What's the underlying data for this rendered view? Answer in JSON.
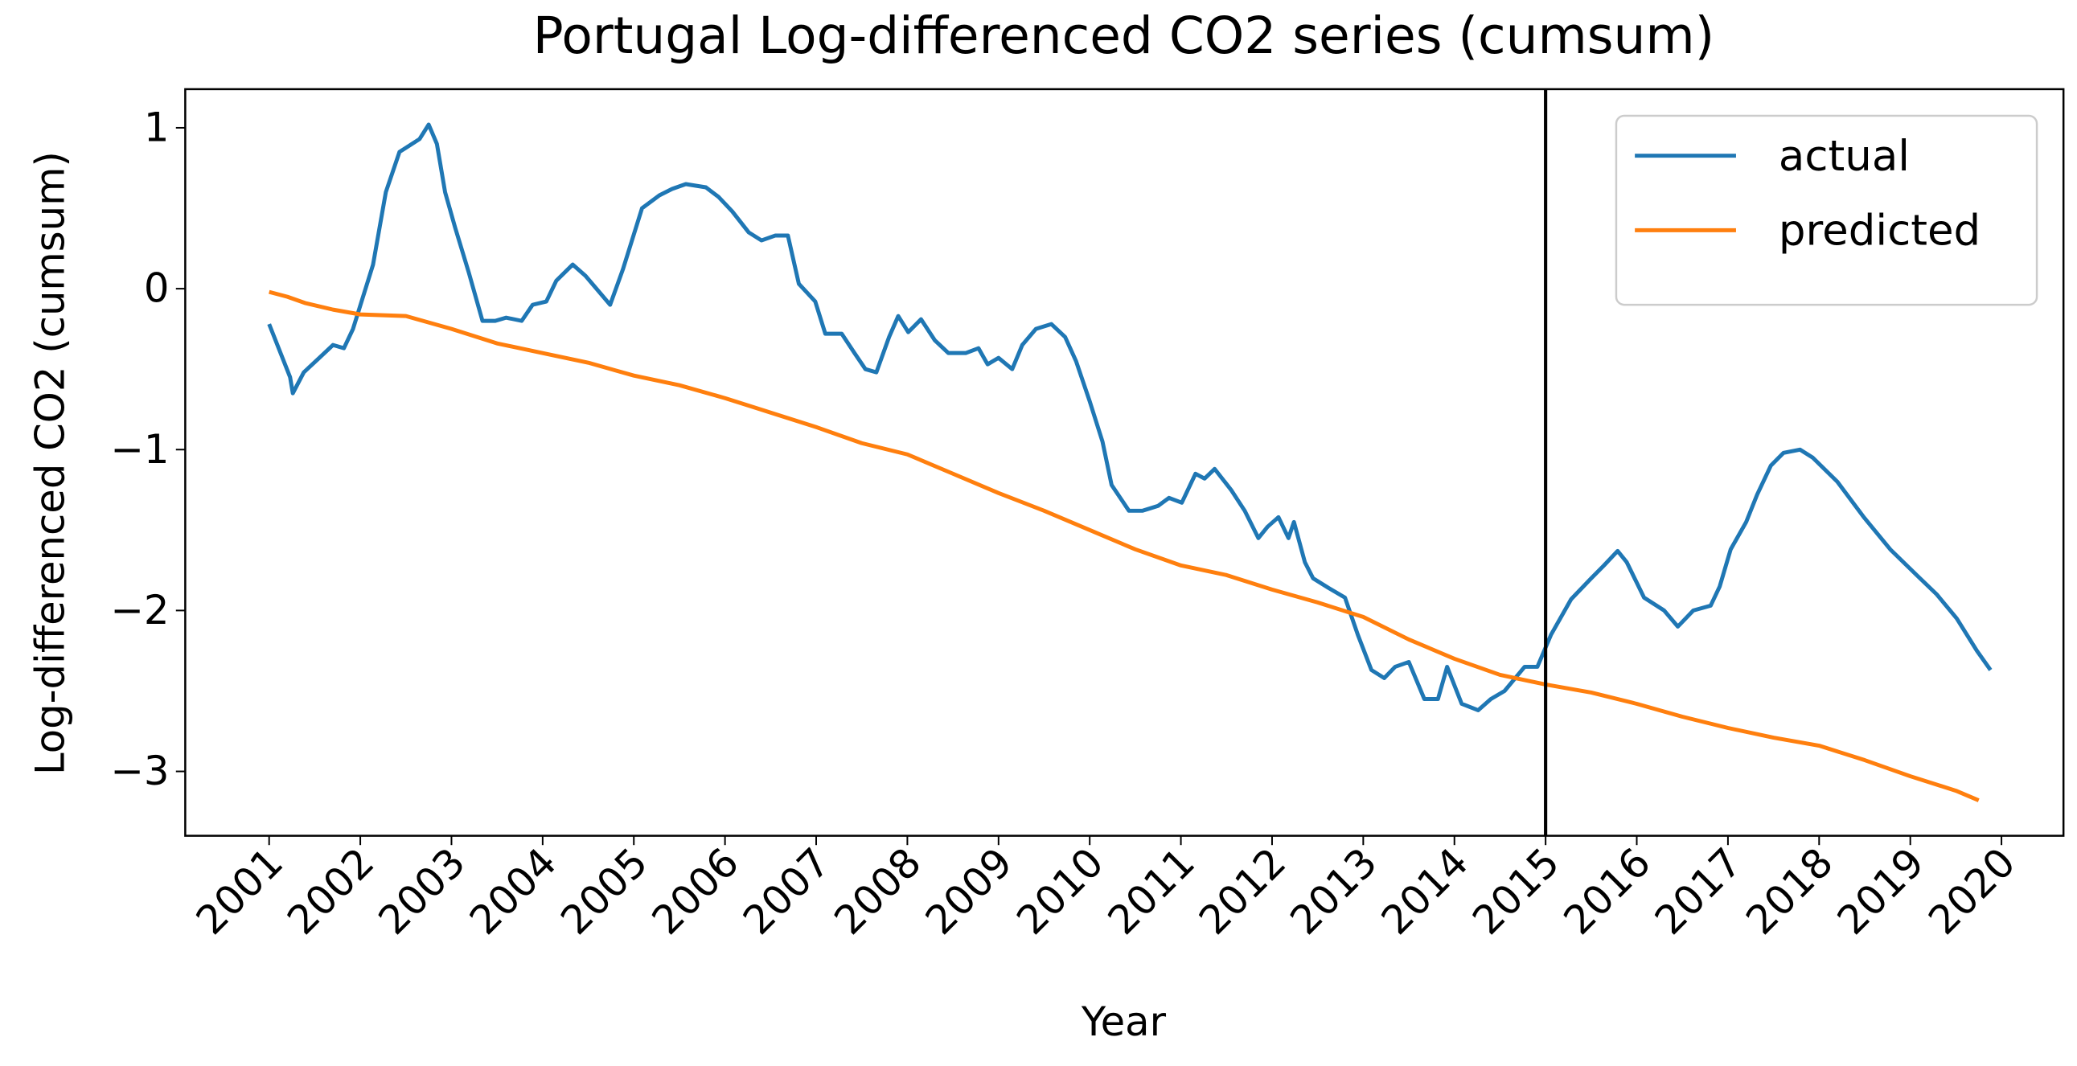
{
  "chart_data": {
    "type": "line",
    "title": "Portugal Log-differenced CO2 series (cumsum)",
    "x_label": "Year",
    "y_label": "Log-differenced CO2 (cumsum)",
    "xlim": [
      2000.08,
      2020.68
    ],
    "ylim": [
      -3.4,
      1.24
    ],
    "xticks": [
      2001,
      2002,
      2003,
      2004,
      2005,
      2006,
      2007,
      2008,
      2009,
      2010,
      2011,
      2012,
      2013,
      2014,
      2015,
      2016,
      2017,
      2018,
      2019,
      2020
    ],
    "yticks": [
      {
        "value": -3,
        "label": "−3"
      },
      {
        "value": -2,
        "label": "−2"
      },
      {
        "value": -1,
        "label": "−1"
      },
      0,
      1
    ],
    "vline": 2015,
    "vline_color": "#000000",
    "grid": false,
    "legend": "upper right",
    "series": [
      {
        "name": "actual",
        "color": "#1f77b4",
        "x": [
          2001.0,
          2001.23,
          2001.26,
          2001.38,
          2001.55,
          2001.7,
          2001.82,
          2001.92,
          2002.14,
          2002.28,
          2002.43,
          2002.65,
          2002.75,
          2002.84,
          2002.93,
          2003.04,
          2003.19,
          2003.34,
          2003.48,
          2003.6,
          2003.77,
          2003.89,
          2004.04,
          2004.15,
          2004.33,
          2004.47,
          2004.62,
          2004.74,
          2004.88,
          2005.09,
          2005.28,
          2005.42,
          2005.57,
          2005.79,
          2005.93,
          2006.08,
          2006.26,
          2006.4,
          2006.55,
          2006.69,
          2006.81,
          2006.99,
          2007.1,
          2007.28,
          2007.42,
          2007.54,
          2007.66,
          2007.8,
          2007.9,
          2008.01,
          2008.15,
          2008.3,
          2008.45,
          2008.64,
          2008.78,
          2008.88,
          2009.0,
          2009.15,
          2009.26,
          2009.41,
          2009.58,
          2009.73,
          2009.85,
          2010.0,
          2010.14,
          2010.24,
          2010.43,
          2010.58,
          2010.75,
          2010.87,
          2011.01,
          2011.16,
          2011.26,
          2011.37,
          2011.55,
          2011.7,
          2011.85,
          2011.95,
          2012.07,
          2012.18,
          2012.24,
          2012.36,
          2012.45,
          2012.62,
          2012.8,
          2012.94,
          2013.09,
          2013.23,
          2013.35,
          2013.5,
          2013.67,
          2013.82,
          2013.92,
          2014.08,
          2014.26,
          2014.4,
          2014.55,
          2014.77,
          2014.91,
          2015.06,
          2015.28,
          2015.5,
          2015.64,
          2015.79,
          2015.89,
          2016.08,
          2016.3,
          2016.45,
          2016.62,
          2016.81,
          2016.91,
          2017.03,
          2017.2,
          2017.32,
          2017.47,
          2017.61,
          2017.79,
          2017.93,
          2018.2,
          2018.49,
          2018.78,
          2019.07,
          2019.29,
          2019.51,
          2019.73,
          2019.88
        ],
        "values": [
          -0.22,
          -0.55,
          -0.65,
          -0.52,
          -0.43,
          -0.35,
          -0.37,
          -0.25,
          0.15,
          0.6,
          0.85,
          0.93,
          1.02,
          0.9,
          0.6,
          0.38,
          0.1,
          -0.2,
          -0.2,
          -0.18,
          -0.2,
          -0.1,
          -0.08,
          0.05,
          0.15,
          0.08,
          -0.02,
          -0.1,
          0.12,
          0.5,
          0.58,
          0.62,
          0.65,
          0.63,
          0.57,
          0.48,
          0.35,
          0.3,
          0.33,
          0.33,
          0.03,
          -0.08,
          -0.28,
          -0.28,
          -0.4,
          -0.5,
          -0.52,
          -0.3,
          -0.17,
          -0.27,
          -0.19,
          -0.32,
          -0.4,
          -0.4,
          -0.37,
          -0.47,
          -0.43,
          -0.5,
          -0.35,
          -0.25,
          -0.22,
          -0.3,
          -0.45,
          -0.7,
          -0.95,
          -1.22,
          -1.38,
          -1.38,
          -1.35,
          -1.3,
          -1.33,
          -1.15,
          -1.18,
          -1.12,
          -1.25,
          -1.38,
          -1.55,
          -1.48,
          -1.42,
          -1.55,
          -1.45,
          -1.7,
          -1.8,
          -1.86,
          -1.92,
          -2.15,
          -2.37,
          -2.42,
          -2.35,
          -2.32,
          -2.55,
          -2.55,
          -2.35,
          -2.58,
          -2.62,
          -2.55,
          -2.5,
          -2.35,
          -2.35,
          -2.15,
          -1.93,
          -1.8,
          -1.72,
          -1.63,
          -1.7,
          -1.92,
          -2.0,
          -2.1,
          -2.0,
          -1.97,
          -1.85,
          -1.62,
          -1.45,
          -1.28,
          -1.1,
          -1.02,
          -1.0,
          -1.05,
          -1.2,
          -1.42,
          -1.62,
          -1.78,
          -1.9,
          -2.05,
          -2.25,
          -2.37
        ]
      },
      {
        "name": "predicted",
        "color": "#ff7f0e",
        "x": [
          2001.0,
          2001.2,
          2001.4,
          2001.7,
          2002.0,
          2002.5,
          2003.0,
          2003.5,
          2004.0,
          2004.5,
          2005.0,
          2005.5,
          2006.0,
          2006.5,
          2007.0,
          2007.5,
          2008.0,
          2008.5,
          2009.0,
          2009.5,
          2010.0,
          2010.5,
          2011.0,
          2011.5,
          2012.0,
          2012.5,
          2013.0,
          2013.5,
          2014.0,
          2014.5,
          2015.0,
          2015.5,
          2016.0,
          2016.5,
          2017.0,
          2017.5,
          2018.0,
          2018.5,
          2019.0,
          2019.5,
          2019.75
        ],
        "values": [
          -0.02,
          -0.05,
          -0.09,
          -0.13,
          -0.16,
          -0.17,
          -0.25,
          -0.34,
          -0.4,
          -0.46,
          -0.54,
          -0.6,
          -0.68,
          -0.77,
          -0.86,
          -0.96,
          -1.03,
          -1.15,
          -1.27,
          -1.38,
          -1.5,
          -1.62,
          -1.72,
          -1.78,
          -1.87,
          -1.95,
          -2.04,
          -2.18,
          -2.3,
          -2.4,
          -2.46,
          -2.51,
          -2.58,
          -2.66,
          -2.73,
          -2.79,
          -2.84,
          -2.93,
          -3.03,
          -3.12,
          -3.18
        ]
      }
    ]
  }
}
